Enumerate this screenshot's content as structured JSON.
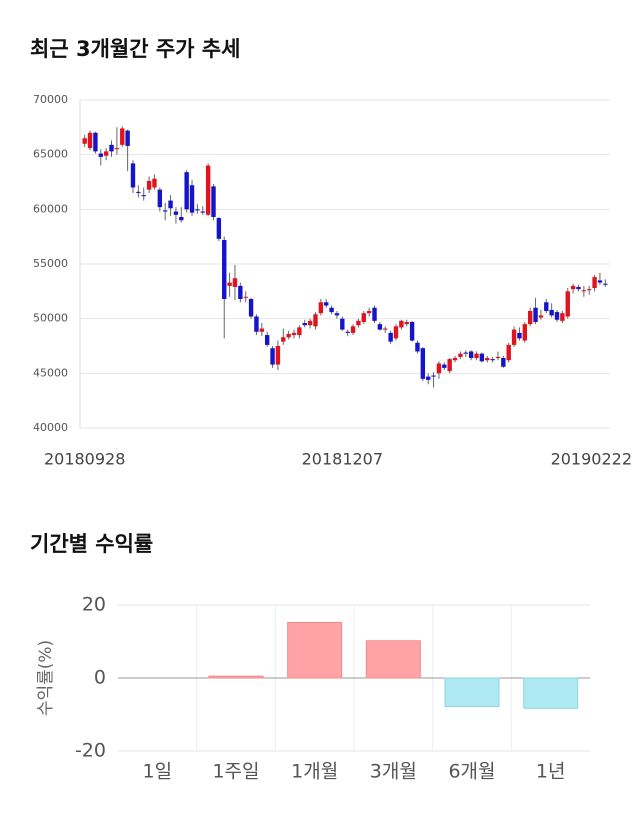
{
  "chart_data": [
    {
      "type": "candlestick",
      "title": "최근 3개월간 주가 추세",
      "up_color": "#e0141e",
      "down_color": "#1414c8",
      "ylim": [
        40000,
        70000
      ],
      "yticks": [
        40000,
        45000,
        50000,
        55000,
        60000,
        65000,
        70000
      ],
      "grid": true,
      "categories": [
        "20180928",
        null,
        null,
        null,
        null,
        null,
        null,
        null,
        null,
        null,
        null,
        null,
        null,
        null,
        null,
        null,
        null,
        null,
        null,
        null,
        null,
        null,
        null,
        null,
        null,
        null,
        null,
        null,
        null,
        null,
        null,
        null,
        null,
        null,
        null,
        null,
        null,
        null,
        null,
        null,
        null,
        null,
        null,
        null,
        null,
        null,
        null,
        null,
        "20181207",
        null,
        null,
        null,
        null,
        null,
        null,
        null,
        null,
        null,
        null,
        null,
        null,
        null,
        null,
        null,
        null,
        null,
        null,
        null,
        null,
        null,
        null,
        null,
        null,
        null,
        null,
        null,
        null,
        null,
        null,
        null,
        null,
        null,
        null,
        null,
        null,
        null,
        null,
        null,
        null,
        null,
        null,
        null,
        null,
        null,
        null,
        null,
        null,
        "20190222"
      ],
      "ohlc": [
        [
          66000,
          66800,
          65700,
          66500
        ],
        [
          65600,
          67200,
          65400,
          67000
        ],
        [
          67000,
          67100,
          65100,
          65300
        ],
        [
          65100,
          65500,
          64000,
          64800
        ],
        [
          64900,
          65600,
          64500,
          65300
        ],
        [
          65900,
          66300,
          64800,
          65300
        ],
        [
          65500,
          67500,
          65000,
          65600
        ],
        [
          65900,
          67600,
          65700,
          67400
        ],
        [
          67200,
          67300,
          63500,
          65800
        ],
        [
          64200,
          64500,
          61500,
          62000
        ],
        [
          61600,
          62200,
          61100,
          61500
        ],
        [
          61300,
          62000,
          60800,
          61200
        ],
        [
          61800,
          63000,
          61500,
          62600
        ],
        [
          62000,
          63200,
          61800,
          62800
        ],
        [
          61800,
          62000,
          59800,
          60200
        ],
        [
          59900,
          60600,
          59000,
          59800
        ],
        [
          60800,
          61300,
          59400,
          60100
        ],
        [
          59800,
          60200,
          58700,
          59500
        ],
        [
          59300,
          60200,
          58800,
          59000
        ],
        [
          63400,
          63600,
          59700,
          60000
        ],
        [
          62200,
          62700,
          59400,
          59700
        ],
        [
          60000,
          60500,
          59600,
          59900
        ],
        [
          59800,
          60300,
          59500,
          59700
        ],
        [
          59500,
          64200,
          59400,
          64000
        ],
        [
          62100,
          62300,
          59000,
          59300
        ],
        [
          59200,
          59300,
          57100,
          57300
        ],
        [
          57200,
          57500,
          48200,
          51800
        ],
        [
          53000,
          54200,
          52000,
          53300
        ],
        [
          52900,
          54900,
          51700,
          53700
        ],
        [
          53000,
          53300,
          51500,
          51800
        ],
        [
          52000,
          52500,
          51500,
          52000
        ],
        [
          51800,
          51900,
          50000,
          50200
        ],
        [
          50200,
          50400,
          48500,
          48800
        ],
        [
          48800,
          49600,
          48400,
          49100
        ],
        [
          48500,
          48800,
          47400,
          47600
        ],
        [
          47300,
          47500,
          45500,
          45800
        ],
        [
          45800,
          48000,
          45300,
          47500
        ],
        [
          47900,
          49100,
          47600,
          48300
        ],
        [
          48300,
          48900,
          48100,
          48600
        ],
        [
          48500,
          49000,
          48200,
          48700
        ],
        [
          48500,
          49400,
          48200,
          49200
        ],
        [
          49600,
          49900,
          49200,
          49400
        ],
        [
          49400,
          50000,
          49100,
          49800
        ],
        [
          49300,
          50600,
          49000,
          50400
        ],
        [
          50500,
          51800,
          50300,
          51500
        ],
        [
          51500,
          51800,
          51000,
          51200
        ],
        [
          51000,
          51200,
          50400,
          50600
        ],
        [
          50500,
          50700,
          50000,
          50300
        ],
        [
          50000,
          50200,
          48900,
          49000
        ],
        [
          48800,
          49000,
          48400,
          48700
        ],
        [
          48700,
          49500,
          48500,
          49300
        ],
        [
          49400,
          50000,
          49200,
          49800
        ],
        [
          49700,
          50700,
          49500,
          50500
        ],
        [
          50500,
          51000,
          50200,
          50700
        ],
        [
          51000,
          51200,
          49600,
          49800
        ],
        [
          49500,
          49700,
          48900,
          49000
        ],
        [
          49000,
          49300,
          48700,
          49100
        ],
        [
          48700,
          48900,
          47700,
          47900
        ],
        [
          48200,
          49500,
          48000,
          49300
        ],
        [
          49200,
          49900,
          49000,
          49800
        ],
        [
          49500,
          49900,
          49300,
          49700
        ],
        [
          49700,
          49800,
          47900,
          48000
        ],
        [
          47800,
          48000,
          46800,
          47000
        ],
        [
          47300,
          47400,
          44300,
          44500
        ],
        [
          44700,
          45000,
          44000,
          44400
        ],
        [
          44800,
          45100,
          43700,
          44700
        ],
        [
          45000,
          46100,
          44500,
          45900
        ],
        [
          45800,
          46000,
          45300,
          45500
        ],
        [
          45200,
          46400,
          45000,
          46300
        ],
        [
          46200,
          46600,
          46000,
          46400
        ],
        [
          46500,
          47000,
          46300,
          46800
        ],
        [
          46900,
          47100,
          46500,
          46800
        ],
        [
          47000,
          47100,
          46200,
          46400
        ],
        [
          46400,
          47000,
          46200,
          46800
        ],
        [
          46800,
          46900,
          46000,
          46100
        ],
        [
          46200,
          46600,
          46000,
          46400
        ],
        [
          46300,
          46500,
          46000,
          46200
        ],
        [
          46400,
          47000,
          46200,
          46500
        ],
        [
          46400,
          46600,
          45500,
          45600
        ],
        [
          46200,
          47800,
          46000,
          47600
        ],
        [
          47600,
          49300,
          47400,
          49000
        ],
        [
          48700,
          49200,
          48000,
          48200
        ],
        [
          48000,
          49700,
          47800,
          49500
        ],
        [
          49500,
          51000,
          49300,
          50700
        ],
        [
          51000,
          51900,
          49500,
          49700
        ],
        [
          50100,
          50800,
          49900,
          50300
        ],
        [
          51500,
          51800,
          50500,
          50700
        ],
        [
          50800,
          51400,
          50100,
          50300
        ],
        [
          50600,
          50800,
          49700,
          49900
        ],
        [
          49800,
          50700,
          49600,
          50500
        ],
        [
          50200,
          52800,
          50000,
          52500
        ],
        [
          52700,
          53200,
          52300,
          53000
        ],
        [
          52900,
          53100,
          52500,
          52700
        ],
        [
          52500,
          53000,
          52000,
          52600
        ],
        [
          52600,
          53000,
          52200,
          52700
        ],
        [
          52800,
          54000,
          52500,
          53800
        ],
        [
          53500,
          54200,
          53100,
          53300
        ],
        [
          53200,
          53600,
          52900,
          53100
        ]
      ]
    },
    {
      "type": "bar",
      "title": "기간별 수익률",
      "y_label": "수익률(%)",
      "categories": [
        "1일",
        "1주일",
        "1개월",
        "3개월",
        "6개월",
        "1년"
      ],
      "values": [
        0,
        0.5,
        15.2,
        10.2,
        -7.8,
        -8.3
      ],
      "pos_color": "#ffa3a6",
      "neg_color": "#aee9f2",
      "ylim": [
        -20,
        20
      ],
      "yticks": [
        -20,
        0,
        20
      ],
      "grid": true
    }
  ]
}
